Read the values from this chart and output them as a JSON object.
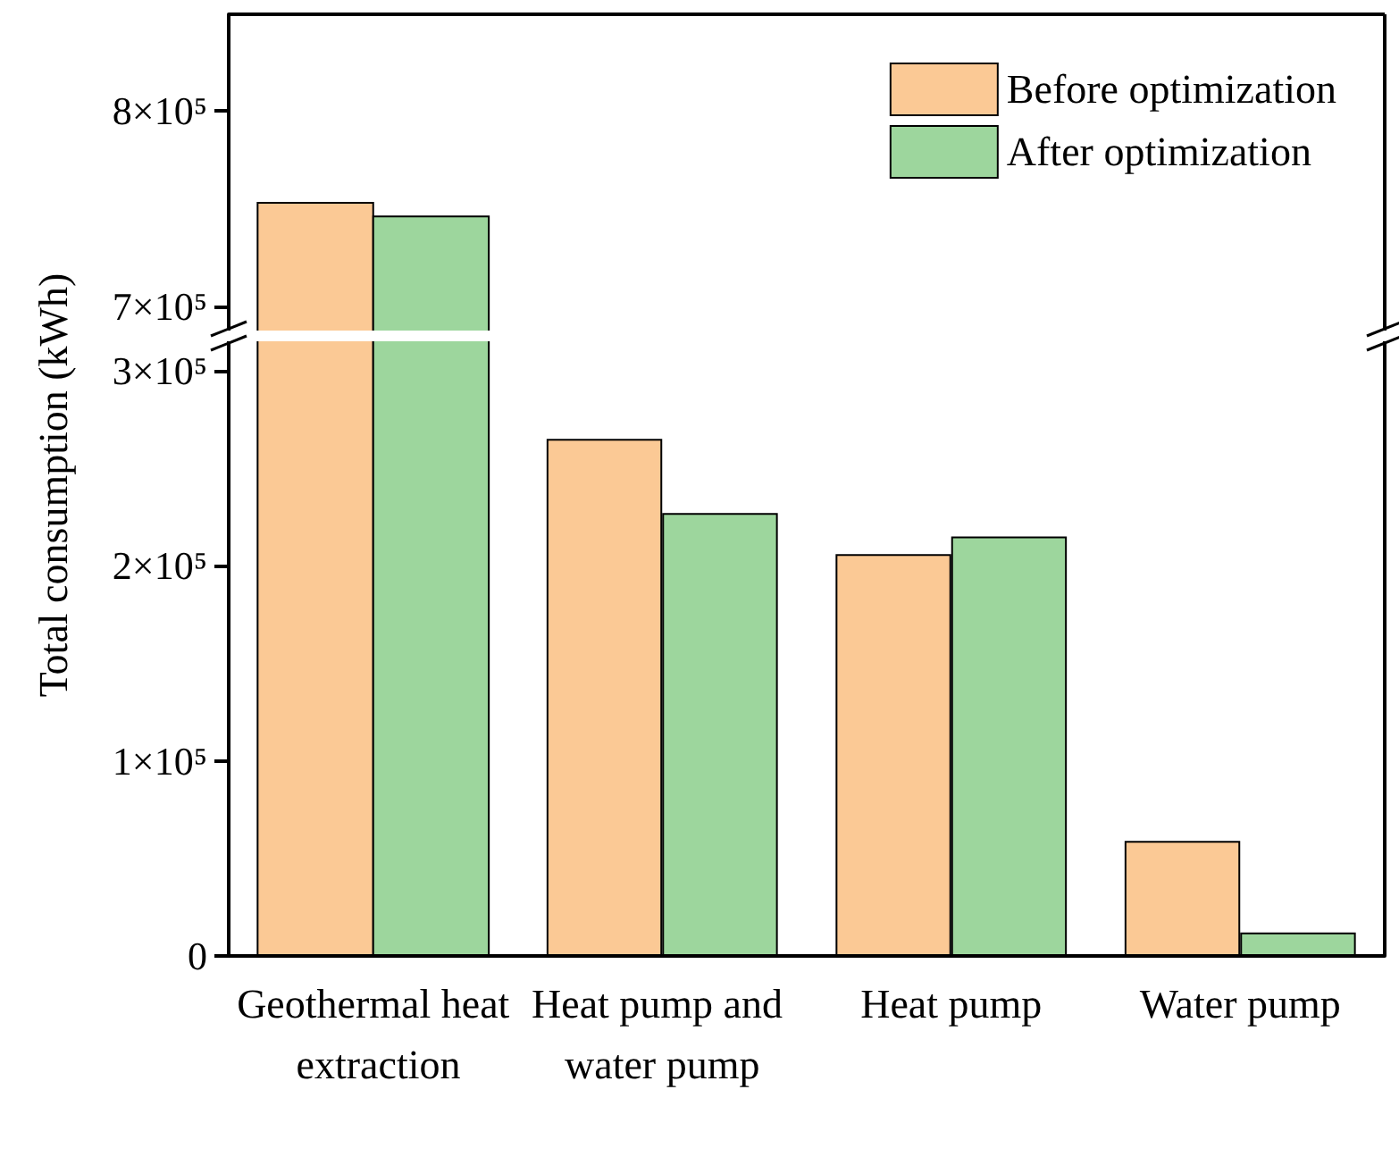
{
  "chart_data": [
    {
      "type": "bar",
      "categories": [
        "Geothermal heat extraction",
        "Heat pump and water pump",
        "Heat pump",
        "Water pump"
      ],
      "series": [
        {
          "name": "Before optimization",
          "color": "#fbc995",
          "values": [
            753000,
            null,
            null,
            null
          ]
        },
        {
          "name": "After optimization",
          "color": "#9dd69d",
          "values": [
            746000,
            null,
            null,
            null
          ]
        }
      ],
      "ylim": [
        687000,
        849000
      ],
      "yticks": [
        {
          "value": 700000,
          "label": "7×10⁵"
        },
        {
          "value": 800000,
          "label": "8×10⁵"
        }
      ],
      "tick_labels": "y",
      "legend": "top right",
      "grid": false
    },
    {
      "type": "bar",
      "ylabel": "Total consumption (kWh)",
      "categories": [
        "Geothermal heat extraction",
        "Heat pump and water pump",
        "Heat pump",
        "Water pump"
      ],
      "series": [
        {
          "color": "#fbc995",
          "values": [
            null,
            265000,
            206000,
            59000
          ]
        },
        {
          "color": "#9dd69d",
          "values": [
            null,
            227000,
            215000,
            12000
          ]
        }
      ],
      "ylim": [
        0,
        316000
      ],
      "yticks": [
        {
          "value": 0,
          "label": "0"
        },
        {
          "value": 100000,
          "label": "1×10⁵"
        },
        {
          "value": 200000,
          "label": "2×10⁵"
        },
        {
          "value": 300000,
          "label": "3×10⁵"
        }
      ],
      "grid": false
    }
  ]
}
